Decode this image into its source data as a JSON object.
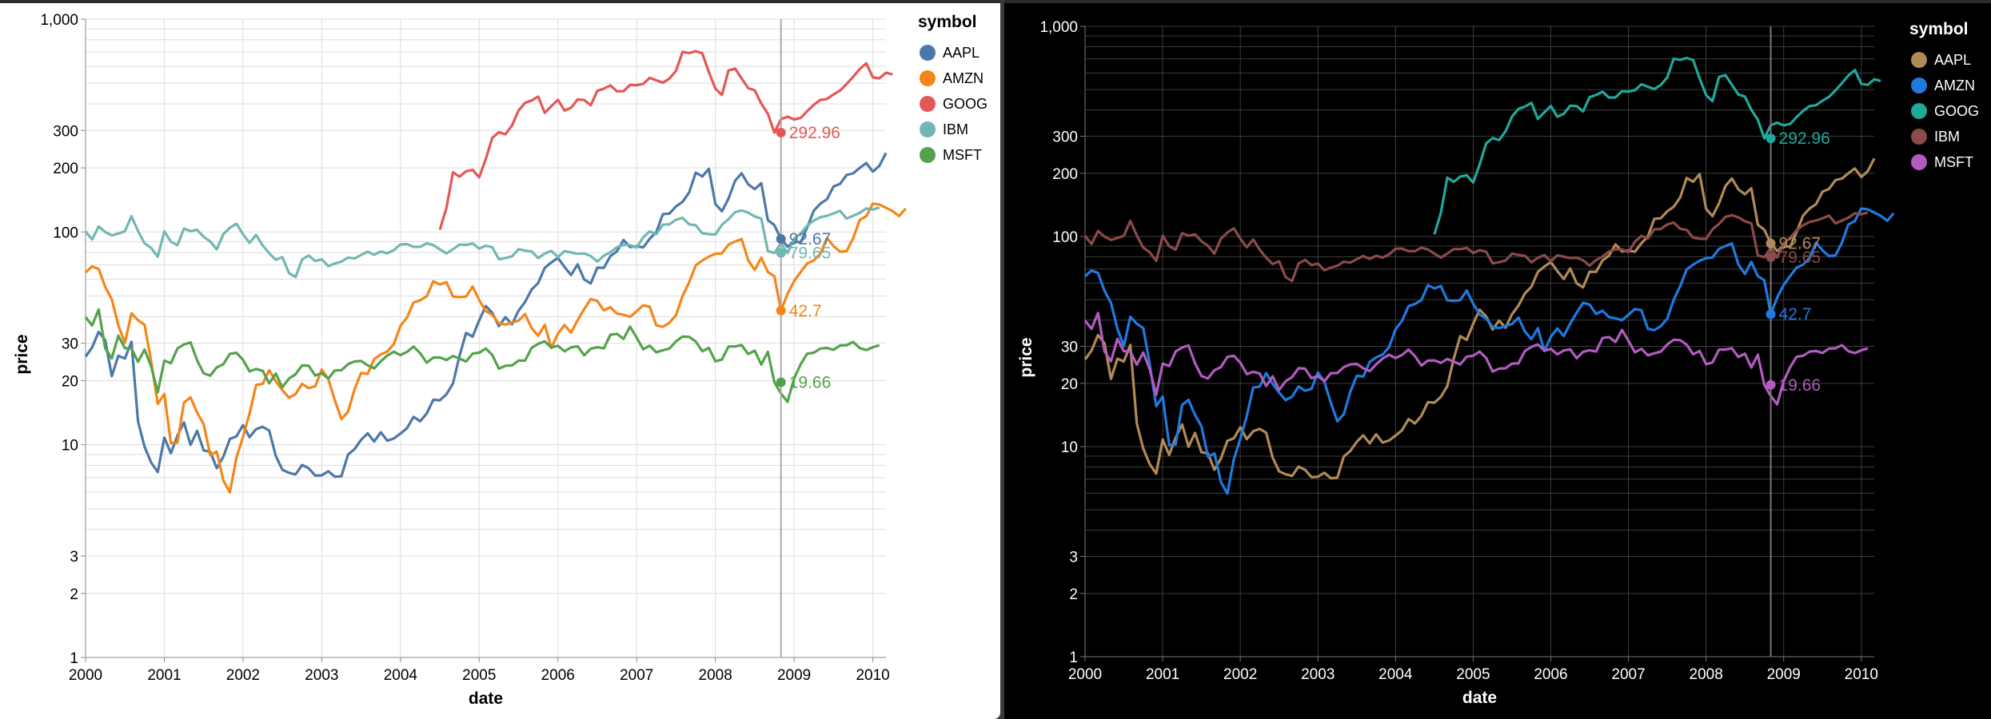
{
  "chart_data": [
    {
      "id": "light",
      "type": "line",
      "theme": "light",
      "xlabel": "date",
      "ylabel": "price",
      "yscale": "log",
      "ylim": [
        1,
        1000
      ],
      "xlim": [
        "2000-01-01",
        "2010-03-01"
      ],
      "x_ticks": [
        "2000",
        "2001",
        "2002",
        "2003",
        "2004",
        "2005",
        "2006",
        "2007",
        "2008",
        "2009",
        "2010"
      ],
      "y_ticks": [
        "1",
        "2",
        "3",
        "10",
        "20",
        "30",
        "100",
        "200",
        "300",
        "1,000"
      ],
      "grid": true,
      "legend": "right",
      "legend_title": "symbol",
      "rule_date": "2008-11-01",
      "series": [
        {
          "name": "AAPL",
          "color": "#4c78a8",
          "end_label": "92.67",
          "end_value": 92.67
        },
        {
          "name": "AMZN",
          "color": "#f58518",
          "end_label": "42.7",
          "end_value": 42.7
        },
        {
          "name": "GOOG",
          "color": "#e45756",
          "end_label": "292.96",
          "end_value": 292.96
        },
        {
          "name": "IBM",
          "color": "#72b7b2",
          "end_label": "79.65",
          "end_value": 79.65
        },
        {
          "name": "MSFT",
          "color": "#54a24b",
          "end_label": "19.66",
          "end_value": 19.66
        }
      ]
    },
    {
      "id": "dark",
      "type": "line",
      "theme": "dark",
      "xlabel": "date",
      "ylabel": "price",
      "yscale": "log",
      "ylim": [
        1,
        1000
      ],
      "xlim": [
        "2000-01-01",
        "2010-03-01"
      ],
      "x_ticks": [
        "2000",
        "2001",
        "2002",
        "2003",
        "2004",
        "2005",
        "2006",
        "2007",
        "2008",
        "2009",
        "2010"
      ],
      "y_ticks": [
        "1",
        "2",
        "3",
        "10",
        "20",
        "30",
        "100",
        "200",
        "300",
        "1,000"
      ],
      "grid": true,
      "legend": "right",
      "legend_title": "symbol",
      "rule_date": "2008-11-01",
      "series": [
        {
          "name": "AAPL",
          "color": "#b18a57",
          "end_label": "92.67",
          "end_value": 92.67
        },
        {
          "name": "AMZN",
          "color": "#1f7ae0",
          "end_label": "42.7",
          "end_value": 42.7
        },
        {
          "name": "GOOG",
          "color": "#1fa99c",
          "end_label": "292.96",
          "end_value": 292.96
        },
        {
          "name": "IBM",
          "color": "#8c4a4a",
          "end_label": "79.65",
          "end_value": 79.65
        },
        {
          "name": "MSFT",
          "color": "#b25bc0",
          "end_label": "19.66",
          "end_value": 19.66
        }
      ]
    }
  ],
  "price_series": {
    "start": "2000-01",
    "AAPL": [
      25.94,
      28.66,
      33.95,
      31.01,
      21,
      26.19,
      25.41,
      30.47,
      12.88,
      9.78,
      8.25,
      7.44,
      10.81,
      9.12,
      11.03,
      12.74,
      9.98,
      11.62,
      9.4,
      9.27,
      7.76,
      8.78,
      10.65,
      10.95,
      12.36,
      10.85,
      11.84,
      12.14,
      11.65,
      8.86,
      7.63,
      7.38,
      7.25,
      8.03,
      7.75,
      7.16,
      7.18,
      7.51,
      7.07,
      7.11,
      8.98,
      9.53,
      10.54,
      11.31,
      10.36,
      11.44,
      10.45,
      10.69,
      11.28,
      11.96,
      13.52,
      12.89,
      14.03,
      16.27,
      16.17,
      17.25,
      19.38,
      26.2,
      33.53,
      32.2,
      38.45,
      44.86,
      41.67,
      36.06,
      39.76,
      36.81,
      42.65,
      46.89,
      53.61,
      57.59,
      67.82,
      71.89,
      75.51,
      68.49,
      62.72,
      70.39,
      59.77,
      57.27,
      67.96,
      67.85,
      76.98,
      81.08,
      91.66,
      84.84,
      85.73,
      84.61,
      92.91,
      99.8,
      121.19,
      122.04,
      131.76,
      138.48,
      153.47,
      189.95,
      182.22,
      198.08,
      135.36,
      125.02,
      143.5,
      173.95,
      188.75,
      167.44,
      158.95,
      169.53,
      113.66,
      107.59,
      92.67,
      85.35,
      90.13,
      89.31,
      105.12,
      125.83,
      135.81,
      142.43,
      163.39,
      168.21,
      185.35,
      188.5,
      199.91,
      210.73,
      192.06,
      204.62,
      235
    ],
    "AMZN": [
      64.56,
      68.87,
      67,
      55.19,
      48.31,
      36.31,
      30.12,
      41.5,
      38.44,
      36.62,
      24.69,
      15.56,
      17.31,
      10.19,
      10.23,
      15.78,
      16.69,
      14.15,
      12.49,
      8.94,
      9.28,
      6.79,
      5.97,
      8.7,
      10.89,
      14.01,
      19.1,
      19.3,
      22.39,
      19.92,
      18.06,
      16.64,
      17.28,
      19.33,
      18.44,
      18.83,
      22.54,
      20.36,
      16.14,
      13.2,
      14.27,
      18.22,
      21.74,
      21.53,
      25.27,
      26.59,
      27.39,
      29.73,
      36.17,
      39.63,
      46.6,
      47.74,
      49.81,
      58.61,
      56.58,
      58.12,
      49.7,
      49.41,
      49.76,
      55.35,
      47.86,
      42.52,
      40.74,
      37.16,
      36.68,
      37.5,
      38.3,
      41.1,
      35.3,
      32.5,
      36.6,
      28.5,
      33.3,
      36.5,
      33.6,
      38.5,
      43.4,
      48.4,
      47.4,
      42.8,
      44.3,
      41.3,
      40.8,
      39.9,
      42.4,
      45.2,
      44.5,
      36.4,
      35.8,
      37.4,
      40.6,
      50.0,
      58.0,
      69.7,
      73.4,
      76.6,
      78.9,
      79.4,
      87.2,
      90.1,
      92.6,
      73.6,
      66.3,
      75.7,
      64.8,
      61.9,
      42.7,
      51.2,
      58.8,
      64.8,
      71.1,
      73.4,
      79.0,
      93.6,
      85.8,
      80.8,
      81.3,
      93.4,
      114.0,
      118.5,
      135.9,
      134.5,
      130.0,
      125.4,
      118.8,
      128.8
    ],
    "GOOG": [
      null,
      null,
      null,
      null,
      null,
      null,
      null,
      null,
      null,
      null,
      null,
      null,
      null,
      null,
      null,
      null,
      null,
      null,
      null,
      null,
      null,
      null,
      null,
      null,
      null,
      null,
      null,
      null,
      null,
      null,
      null,
      null,
      null,
      null,
      null,
      null,
      null,
      null,
      null,
      null,
      null,
      null,
      null,
      null,
      null,
      null,
      null,
      null,
      null,
      null,
      null,
      null,
      null,
      null,
      102.37,
      129.6,
      190.64,
      181.98,
      192.79,
      195.62,
      180.51,
      220,
      277.27,
      294.15,
      287.76,
      316.46,
      372.14,
      404.91,
      414.86,
      432.66,
      362.62,
      390,
      417.94,
      371.82,
      383.42,
      419.33,
      417.05,
      393.61,
      460.48,
      471.31,
      488.56,
      458.16,
      459.05,
      491.05,
      489.22,
      496.81,
      529.84,
      516.35,
      503,
      525.76,
      571.72,
      702,
      693,
      707,
      691.48,
      564.3,
      471.18,
      440.47,
      574.29,
      585.8,
      526.42,
      473.75,
      463.29,
      400.52,
      359.36,
      292.96,
      338.53,
      348.18,
      337.99,
      343.32,
      369.78,
      395.97,
      417.23,
      421.59,
      443.05,
      461.67,
      495.85,
      536.12,
      583,
      619.98,
      532.7,
      526.8,
      560.19,
      550
    ],
    "IBM": [
      100.52,
      92.11,
      106.11,
      99.95,
      96.31,
      98.33,
      100.74,
      118.62,
      101.19,
      88.5,
      84.12,
      76.47,
      100.76,
      89.98,
      86.63,
      103.7,
      100.82,
      102.35,
      94.87,
      90.25,
      82.82,
      97.58,
      104.5,
      109.36,
      97.54,
      88.82,
      96.79,
      86.5,
      79.32,
      73.93,
      76.21,
      64.11,
      61.35,
      74.3,
      77.47,
      73.05,
      74.34,
      69.11,
      71.08,
      72.55,
      75.82,
      75.04,
      78.01,
      80.71,
      78.13,
      80.9,
      79.33,
      82.14,
      87.36,
      87.65,
      85.13,
      85.11,
      88.47,
      86.7,
      82.86,
      79.27,
      82.9,
      87.18,
      86.98,
      88.21,
      83.52,
      86.1,
      84.7,
      74.43,
      75.41,
      76.75,
      82.9,
      81.7,
      80.9,
      75.4,
      79.15,
      81.52,
      76.1,
      81.31,
      80.12,
      78.95,
      79.21,
      77.05,
      72.6,
      77.32,
      80.22,
      84.79,
      86.89,
      86.79,
      84.36,
      94.4,
      100.64,
      97.6,
      108.21,
      108.55,
      114.05,
      116.59,
      108.63,
      107.51,
      98.59,
      97.54,
      97.3,
      108.16,
      114.72,
      123.94,
      126.24,
      123.28,
      118.21,
      115.45,
      81.34,
      79.65,
      88.54,
      79.55,
      92.6,
      98.5,
      107.07,
      113.07,
      117.29,
      119.12,
      122.12,
      125.64,
      115.44,
      119.07,
      122.83,
      128.96,
      127.48,
      130.08
    ],
    "MSFT": [
      39.81,
      36.35,
      43.22,
      28.37,
      25.45,
      32.54,
      28.4,
      28.4,
      24.53,
      28.02,
      23.34,
      17.65,
      24.84,
      24.15,
      28.34,
      29.62,
      30.27,
      24.94,
      21.66,
      21.11,
      23.1,
      23.89,
      26.73,
      27.05,
      25.07,
      22.1,
      22.69,
      22.26,
      19.44,
      21.59,
      18.61,
      20.47,
      21.42,
      23.6,
      23.49,
      21.16,
      21.67,
      20.48,
      22.33,
      22.4,
      23.9,
      24.6,
      24.75,
      23.61,
      22.87,
      24.65,
      26.25,
      27.35,
      26.37,
      27.29,
      28.94,
      26.93,
      24.3,
      25.67,
      25.73,
      25.01,
      26.13,
      25.38,
      24.62,
      26.82,
      27.07,
      28.31,
      26.4,
      22.76,
      23.51,
      23.58,
      24.84,
      24.87,
      28.53,
      29.8,
      30.64,
      28.61,
      29.17,
      27.48,
      28.68,
      29.02,
      26.33,
      28.25,
      28.72,
      28.35,
      32.87,
      33.2,
      31.44,
      35.9,
      31.88,
      28.09,
      29.2,
      27.19,
      27.8,
      28.3,
      30.61,
      32.24,
      32.11,
      30.55,
      27.48,
      28.52,
      24.66,
      25.14,
      28.95,
      28.96,
      29.39,
      26.68,
      27.68,
      23.82,
      27.34,
      19.66,
      17.41,
      15.9,
      20.46,
      23.88,
      26.78,
      27.07,
      28.3,
      28.51,
      27.91,
      29.27,
      29.36,
      30.4,
      28.45,
      27.86,
      28.74,
      29.32
    ]
  }
}
